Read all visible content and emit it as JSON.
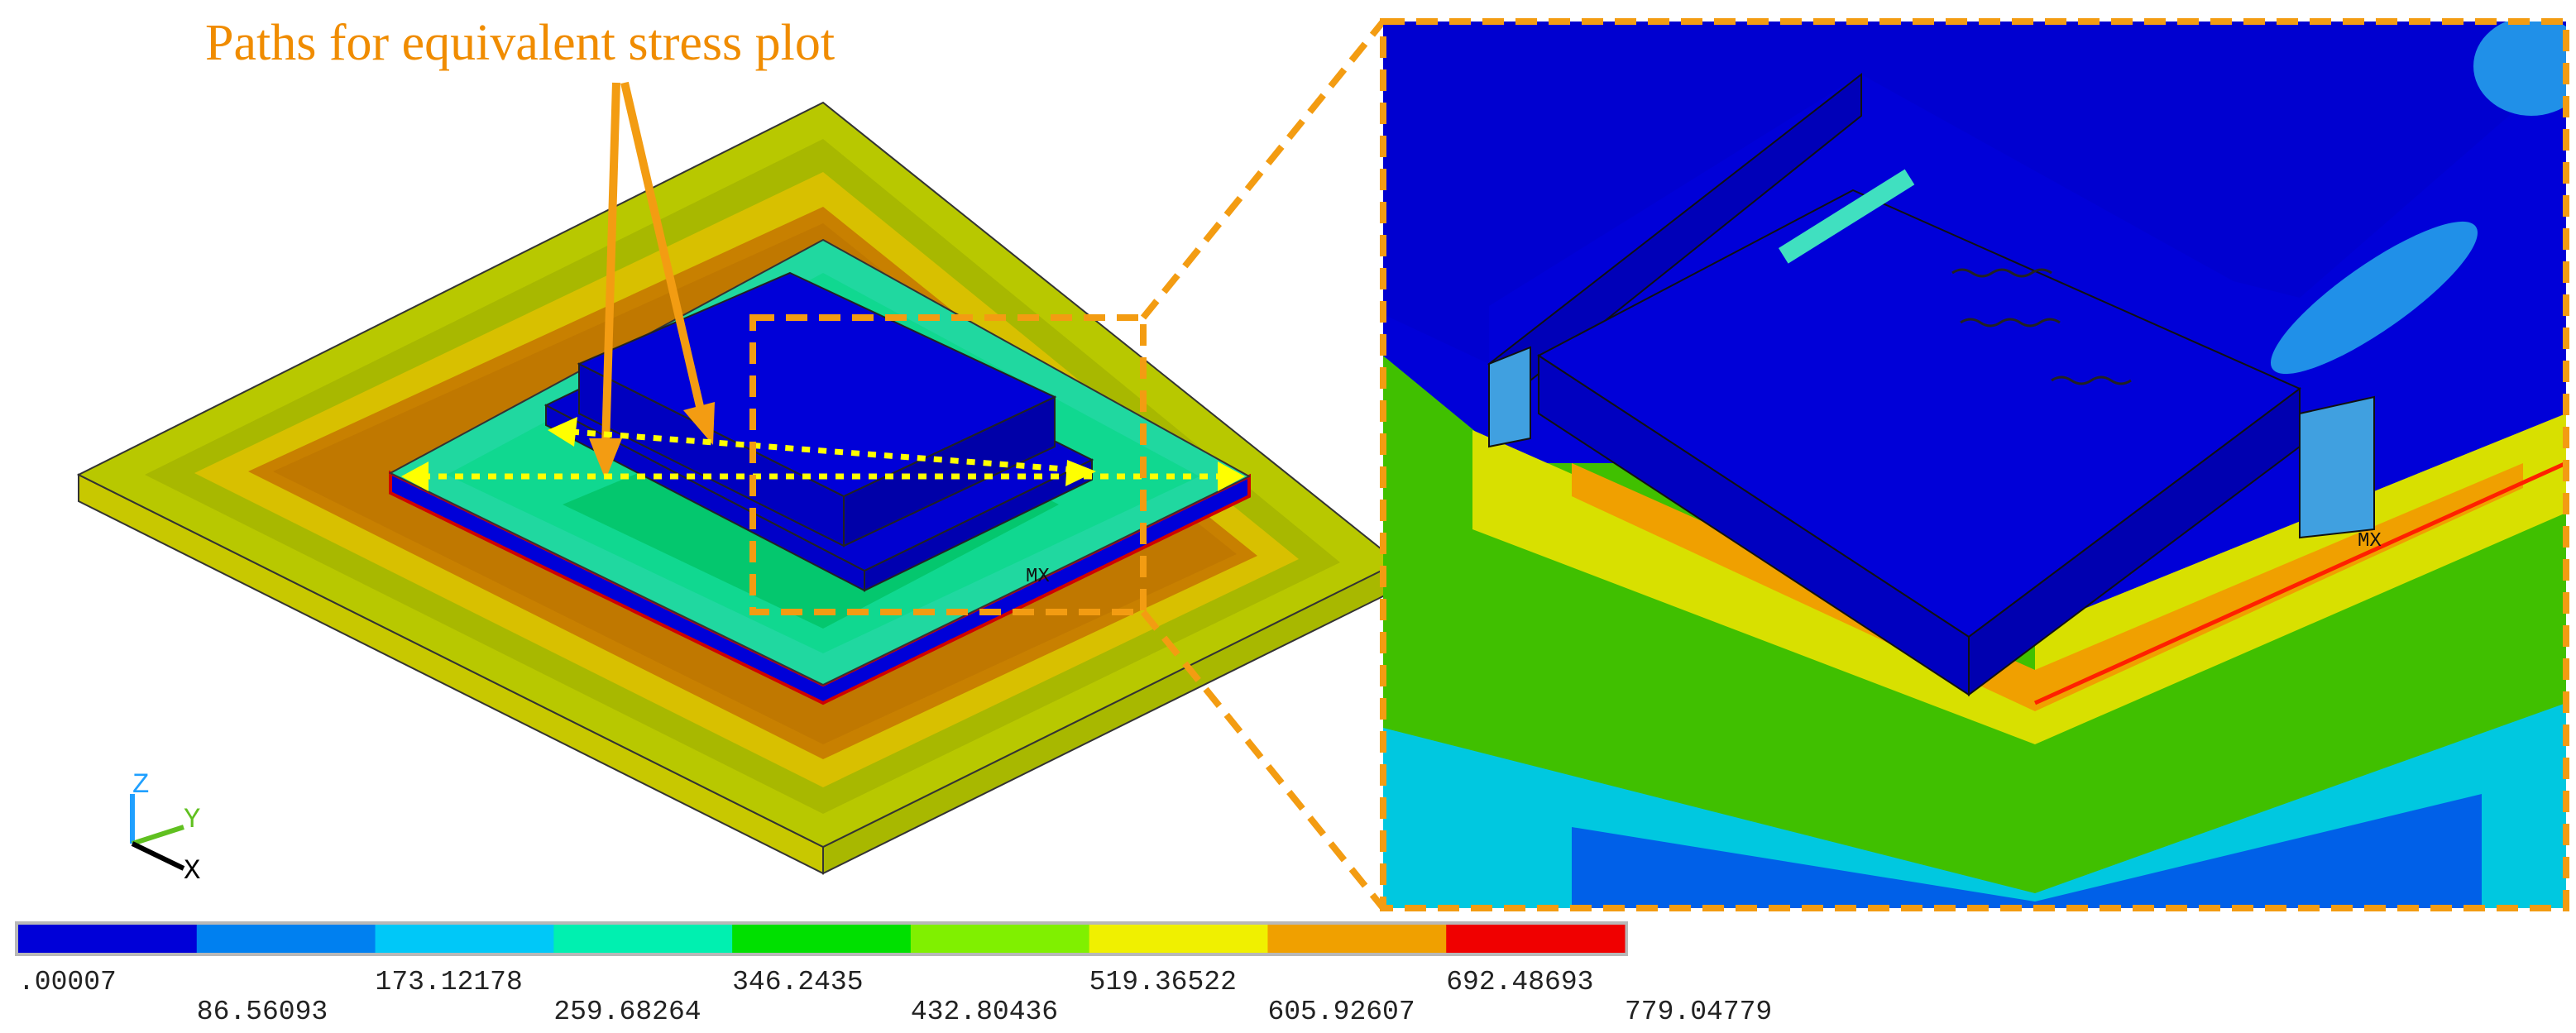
{
  "annotation": {
    "text": "Paths for equivalent stress plot"
  },
  "max_marker": "MX",
  "axes": {
    "z": "Z",
    "y": "Y",
    "x": "X"
  },
  "colors": {
    "annotation": "#f08c00",
    "path": "#ffff00",
    "bands": [
      "#0000d8",
      "#0080f0",
      "#00c8f8",
      "#00f0b0",
      "#00e000",
      "#80f000",
      "#f0f000",
      "#f0a000",
      "#f00000"
    ]
  },
  "legend": {
    "ticks": [
      ".00007",
      "86.56093",
      "173.12178",
      "259.68264",
      "346.2435",
      "432.80436",
      "519.36522",
      "605.92607",
      "692.48693",
      "779.04779"
    ]
  },
  "icons": [
    "coordinate-triad-icon",
    "zoom-frame-icon"
  ]
}
